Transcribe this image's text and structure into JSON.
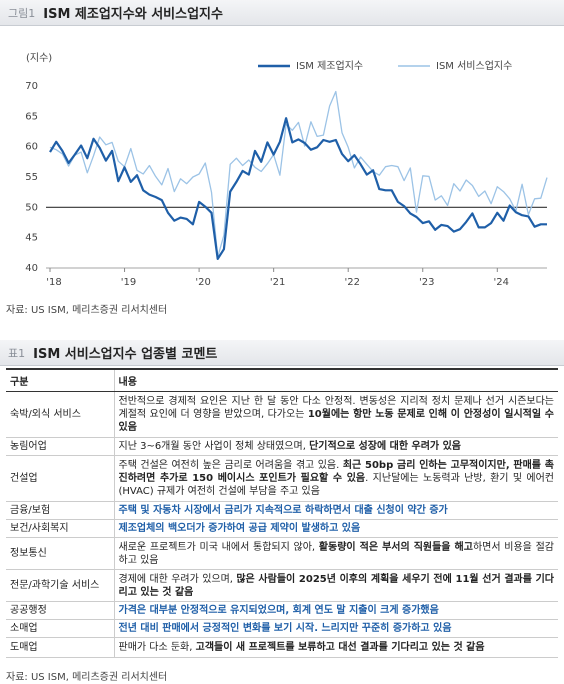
{
  "figure": {
    "label": "그림1",
    "title": "ISM 제조업지수와 서비스업지수"
  },
  "chart_data": {
    "type": "line",
    "ylabel": "(지수)",
    "categories": [
      "'18",
      null,
      null,
      null,
      null,
      null,
      null,
      null,
      null,
      null,
      null,
      null,
      "'19",
      null,
      null,
      null,
      null,
      null,
      null,
      null,
      null,
      null,
      null,
      null,
      "'20",
      null,
      null,
      null,
      null,
      null,
      null,
      null,
      null,
      null,
      null,
      null,
      "'21",
      null,
      null,
      null,
      null,
      null,
      null,
      null,
      null,
      null,
      null,
      null,
      "'22",
      null,
      null,
      null,
      null,
      null,
      null,
      null,
      null,
      null,
      null,
      null,
      "'23",
      null,
      null,
      null,
      null,
      null,
      null,
      null,
      null,
      null,
      null,
      null,
      "'24",
      null,
      null,
      null,
      null,
      null,
      null,
      null,
      null
    ],
    "series": [
      {
        "name": "ISM 제조업지수",
        "color": "#1f5fa8",
        "values": [
          59.1,
          60.8,
          59.3,
          57.3,
          58.7,
          60.2,
          58.1,
          61.3,
          59.8,
          57.7,
          59.3,
          54.3,
          56.6,
          54.2,
          55.3,
          52.8,
          52.1,
          51.7,
          51.2,
          49.1,
          47.8,
          48.3,
          48.1,
          47.2,
          50.9,
          50.1,
          49.1,
          41.5,
          43.1,
          52.6,
          54.2,
          56.0,
          55.4,
          59.3,
          57.5,
          60.7,
          58.7,
          60.8,
          64.7,
          60.7,
          61.2,
          60.6,
          59.5,
          59.9,
          61.1,
          60.8,
          61.1,
          58.8,
          57.6,
          58.6,
          57.1,
          55.4,
          56.1,
          53.0,
          52.8,
          52.8,
          50.9,
          50.2,
          49.0,
          48.4,
          47.4,
          47.7,
          46.3,
          47.1,
          46.9,
          46.0,
          46.4,
          47.6,
          49.0,
          46.7,
          46.7,
          47.4,
          49.1,
          47.8,
          50.3,
          49.2,
          48.7,
          48.5,
          46.8,
          47.2,
          47.2
        ]
      },
      {
        "name": "ISM 서비스업지수",
        "color": "#9cc3e6",
        "values": [
          59.9,
          59.5,
          58.8,
          56.8,
          58.6,
          59.1,
          55.7,
          58.5,
          61.6,
          60.3,
          60.7,
          57.6,
          56.7,
          59.7,
          56.1,
          55.5,
          56.9,
          55.1,
          53.7,
          56.4,
          52.6,
          54.7,
          53.9,
          55.0,
          55.5,
          57.3,
          52.5,
          41.8,
          45.4,
          57.1,
          58.1,
          56.9,
          57.8,
          56.6,
          55.9,
          57.2,
          58.7,
          55.3,
          63.7,
          62.7,
          64.0,
          60.1,
          64.1,
          61.7,
          61.9,
          66.7,
          69.1,
          62.3,
          59.9,
          56.5,
          58.3,
          57.1,
          55.9,
          55.3,
          56.7,
          56.9,
          56.7,
          54.4,
          56.5,
          49.2,
          55.2,
          55.1,
          51.2,
          51.9,
          50.3,
          53.9,
          52.7,
          54.5,
          53.6,
          51.8,
          52.7,
          50.6,
          53.4,
          52.6,
          51.4,
          49.4,
          53.8,
          48.8,
          51.4,
          51.5,
          54.9
        ]
      }
    ],
    "ylim": [
      40,
      70
    ],
    "yticks": [
      40,
      45,
      50,
      55,
      60,
      65,
      70
    ],
    "reference_line": 50
  },
  "source1": "자료: US ISM, 메리츠증권 리서치센터",
  "table_caption": {
    "label": "표1",
    "title": "ISM 서비스업지수 업종별 코멘트"
  },
  "table": {
    "columns": [
      "구분",
      "내용"
    ],
    "rows": [
      [
        "숙박/외식 서비스",
        [
          "전반적으로 경제적 요인은 지난 한 달 동안 다소 안정적. 변동성은 지리적 정치 문제나 선거 시즌보다는 계절적 요인에 더 영향을 받았으며, 다가오는 ",
          {
            "text": "10월에는 항만 노동 문제로 인해 이 안정성이 일시적일 수 있음",
            "style": "bold"
          }
        ]
      ],
      [
        "농림어업",
        [
          "지난 3~6개월 동안 사업이 정체 상태였으며, ",
          {
            "text": "단기적으로 성장에 대한 우려가 있음",
            "style": "bold"
          }
        ]
      ],
      [
        "건설업",
        [
          "주택 건설은 여전히 높은 금리로 어려움을 겪고 있음. ",
          {
            "text": "최근 50bp 금리 인하는 고무적이지만, 판매를 촉진하려면 추가로 150 베이시스 포인트가 필요할 수 있음",
            "style": "bold"
          },
          ". 지난달에는 노동력과 난방, 환기 및 에어컨 (HVAC) 규제가 여전히 건설에 부담을 주고 있음"
        ]
      ],
      [
        "금융/보험",
        [
          {
            "text": "주택 및 자동차 시장에서 금리가 지속적으로 하락하면서 대출 신청이 약간 증가",
            "style": "blue"
          }
        ]
      ],
      [
        "보건/사회복지",
        [
          {
            "text": "제조업체의 백오더가 증가하여 공급 제약이 발생하고 있음",
            "style": "blue"
          }
        ]
      ],
      [
        "정보통신",
        [
          "새로운 프로젝트가 미국 내에서 통합되지 않아, ",
          {
            "text": "활동량이 적은 부서의 직원들을 해고",
            "style": "bold"
          },
          "하면서 비용을 절감하고 있음"
        ]
      ],
      [
        "전문/과학기술 서비스",
        [
          "경제에 대한 우려가 있으며, ",
          {
            "text": "많은 사람들이 2025년 이후의 계획을 세우기 전에 11월 선거 결과를 기다리고 있는 것 같음",
            "style": "bold"
          }
        ]
      ],
      [
        "공공행정",
        [
          {
            "text": "가격은 대부분 안정적으로 유지되었으며, 회계 연도 말 지출이 크게 증가했음",
            "style": "blue"
          }
        ]
      ],
      [
        "소매업",
        [
          {
            "text": "전년 대비 판매에서 긍정적인 변화를 보기 시작. 느리지만 꾸준히 증가하고 있음",
            "style": "blue"
          }
        ]
      ],
      [
        "도매업",
        [
          "판매가 다소 둔화, ",
          {
            "text": "고객들이 새 프로젝트를 보류하고 대선 결과를 기다리고 있는 것 같음",
            "style": "bold"
          }
        ]
      ]
    ]
  },
  "source2": "자료: US ISM, 메리츠증권 리서치센터"
}
